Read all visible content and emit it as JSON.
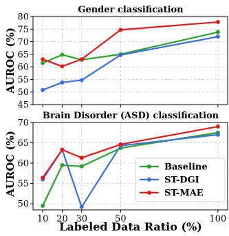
{
  "chart_data": [
    {
      "type": "line",
      "title": "Gender classification",
      "ylabel": "AUROC (%)",
      "xlabel": "",
      "x": [
        10,
        20,
        30,
        50,
        100
      ],
      "xticks": [
        "10",
        "20",
        "30",
        "50",
        "100"
      ],
      "ylim": [
        45,
        80
      ],
      "yticks": [
        45,
        50,
        55,
        60,
        65,
        70,
        75,
        80
      ],
      "grid": true,
      "series": [
        {
          "name": "Baseline",
          "color": "#2ca02c",
          "values": [
            61.5,
            64.8,
            62.8,
            65.0,
            73.8
          ]
        },
        {
          "name": "ST-DGI",
          "color": "#3a6fe0",
          "values": [
            50.8,
            53.8,
            54.7,
            64.7,
            72.0
          ]
        },
        {
          "name": "ST-MAE",
          "color": "#e31a1c",
          "values": [
            63.0,
            60.2,
            63.0,
            74.7,
            77.8
          ]
        }
      ]
    },
    {
      "type": "line",
      "title": "Brain Disorder (ASD) classification",
      "ylabel": "AUROC (%)",
      "xlabel": "Labeled Data Ratio (%)",
      "x": [
        10,
        20,
        30,
        50,
        100
      ],
      "xticks": [
        "10",
        "20",
        "30",
        "50",
        "100"
      ],
      "ylim": [
        48.5,
        70
      ],
      "yticks": [
        50,
        55,
        60,
        65,
        70
      ],
      "grid": true,
      "legend": {
        "position": "center-right",
        "entries": [
          "Baseline",
          "ST-DGI",
          "ST-MAE"
        ]
      },
      "series": [
        {
          "name": "Baseline",
          "color": "#2ca02c",
          "values": [
            49.5,
            59.5,
            59.2,
            63.7,
            67.5
          ]
        },
        {
          "name": "ST-DGI",
          "color": "#3a6fe0",
          "values": [
            56.0,
            63.3,
            49.2,
            64.3,
            67.0
          ]
        },
        {
          "name": "ST-MAE",
          "color": "#e31a1c",
          "values": [
            56.4,
            63.3,
            61.3,
            64.6,
            69.0
          ]
        }
      ]
    }
  ]
}
